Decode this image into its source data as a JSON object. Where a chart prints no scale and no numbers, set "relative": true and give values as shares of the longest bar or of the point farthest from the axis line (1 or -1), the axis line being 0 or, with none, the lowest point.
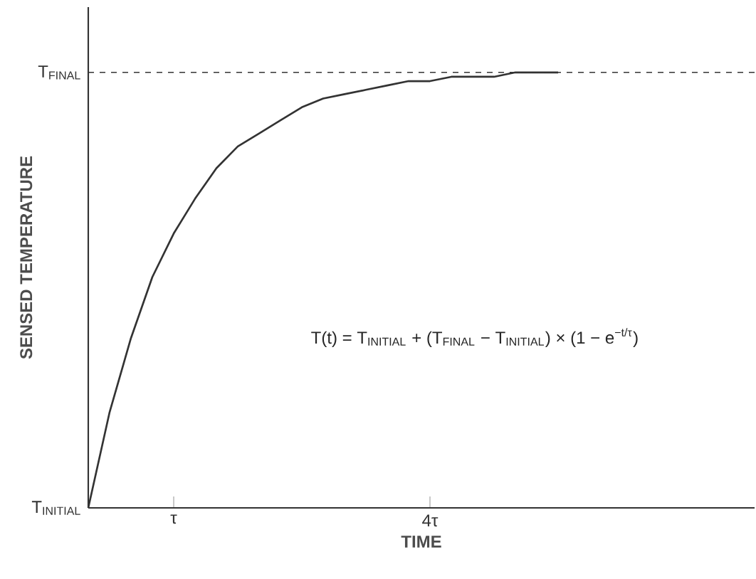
{
  "chart_data": {
    "type": "line",
    "xlabel": "TIME",
    "ylabel": "SENSED TEMPERATURE",
    "color": "#333333",
    "line_style": "solid",
    "relative": true,
    "categories": [
      null,
      null,
      null,
      null,
      "τ",
      null,
      null,
      null,
      null,
      null,
      null,
      null,
      null,
      null,
      null,
      null,
      "4τ",
      null,
      null,
      null,
      null,
      null,
      null,
      null,
      null,
      null,
      null,
      null,
      null,
      null,
      null,
      null
    ],
    "values": [
      0,
      0.22,
      0.39,
      0.53,
      0.63,
      0.71,
      0.78,
      0.83,
      0.86,
      0.89,
      0.92,
      0.94,
      0.95,
      0.96,
      0.97,
      0.98,
      0.98,
      0.99,
      0.99,
      0.99,
      1,
      1,
      1,
      null,
      null,
      null,
      null,
      null,
      null,
      null,
      null,
      null
    ],
    "ref_lines": [
      {
        "axis": "y",
        "value": 1,
        "line_style": "dashed",
        "color": "#333333",
        "label": "T$_{FINAL}$"
      }
    ],
    "annotations": [
      "T$_{INITIAL}$",
      "T(t) = T$_{INITIAL}$ + (T$_{FINAL}$ − T$_{INITIAL}$) × (1 − e$^{−t/τ}$)"
    ]
  }
}
